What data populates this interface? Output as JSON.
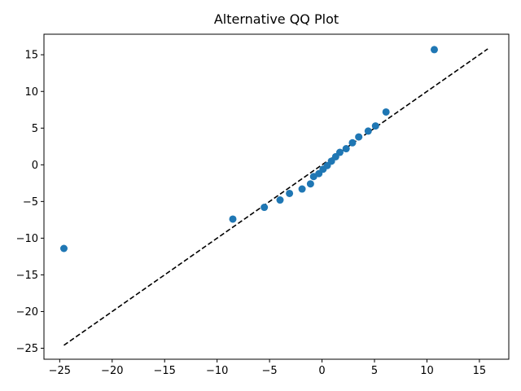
{
  "chart_data": {
    "type": "scatter",
    "title": "Alternative QQ Plot",
    "xlabel": "",
    "ylabel": "",
    "xlim": [
      -26.5,
      17.8
    ],
    "ylim": [
      -26.5,
      17.8
    ],
    "x_ticks": [
      -25,
      -20,
      -15,
      -10,
      -5,
      0,
      5,
      10,
      15
    ],
    "y_ticks": [
      -25,
      -20,
      -15,
      -10,
      -5,
      0,
      5,
      10,
      15
    ],
    "tick_labels": {
      "x": [
        "−25",
        "−20",
        "−15",
        "−10",
        "−5",
        "0",
        "5",
        "10",
        "15"
      ],
      "y": [
        "−25",
        "−20",
        "−15",
        "−10",
        "−5",
        "0",
        "5",
        "10",
        "15"
      ]
    },
    "grid": false,
    "series": [
      {
        "color": "#1f77b4",
        "marker": "circle",
        "points": [
          {
            "x": -24.6,
            "y": -11.4
          },
          {
            "x": -8.5,
            "y": -7.4
          },
          {
            "x": -5.5,
            "y": -5.8
          },
          {
            "x": -4.0,
            "y": -4.8
          },
          {
            "x": -3.1,
            "y": -3.9
          },
          {
            "x": -1.9,
            "y": -3.3
          },
          {
            "x": -1.1,
            "y": -2.6
          },
          {
            "x": -0.8,
            "y": -1.6
          },
          {
            "x": -0.3,
            "y": -1.2
          },
          {
            "x": 0.1,
            "y": -0.6
          },
          {
            "x": 0.5,
            "y": -0.1
          },
          {
            "x": 0.9,
            "y": 0.5
          },
          {
            "x": 1.3,
            "y": 1.1
          },
          {
            "x": 1.7,
            "y": 1.7
          },
          {
            "x": 2.3,
            "y": 2.2
          },
          {
            "x": 2.9,
            "y": 3.0
          },
          {
            "x": 3.5,
            "y": 3.8
          },
          {
            "x": 4.4,
            "y": 4.6
          },
          {
            "x": 5.1,
            "y": 5.3
          },
          {
            "x": 6.1,
            "y": 7.2
          },
          {
            "x": 10.7,
            "y": 15.7
          }
        ]
      }
    ],
    "reference_line": {
      "style": "dashed",
      "color": "#000000",
      "from": {
        "x": -24.6,
        "y": -24.6
      },
      "to": {
        "x": 15.8,
        "y": 15.8
      }
    }
  }
}
